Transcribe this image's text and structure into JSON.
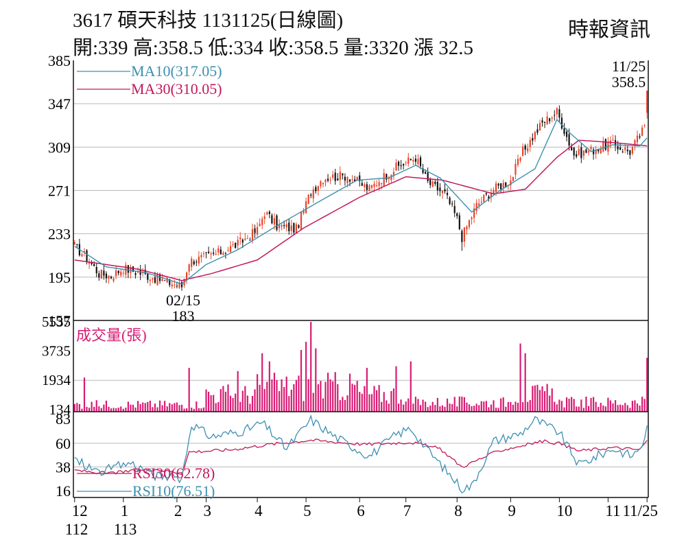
{
  "header": {
    "title": "3617  碩天科技 1131125(日線圖)",
    "ohlc": "開:339 高:358.5 低:334 收:358.5 量:3320 漲 32.5",
    "source": "時報資訊"
  },
  "chart_data": [
    {
      "type": "candlestick",
      "name": "price",
      "ylim": [
        157,
        385
      ],
      "yticks": [
        "385",
        "347",
        "309",
        "271",
        "233",
        "195",
        "157"
      ],
      "grid": true,
      "legend": [
        {
          "label": "MA10(317.05)",
          "color": "#3d8fb0"
        },
        {
          "label": "MA30(310.05)",
          "color": "#c2185b"
        }
      ],
      "annotations": [
        {
          "text": "11/25",
          "date": "2024-11-25"
        },
        {
          "text": "358.5",
          "value": 358.5
        },
        {
          "text": "02/15",
          "date": "2024-02-15"
        },
        {
          "text": "183",
          "value": 183
        }
      ],
      "close_anchors": [
        [
          "2023-12-01",
          222
        ],
        [
          "2023-12-08",
          212
        ],
        [
          "2023-12-15",
          198
        ],
        [
          "2023-12-22",
          196
        ],
        [
          "2024-01-02",
          203
        ],
        [
          "2024-01-15",
          197
        ],
        [
          "2024-01-29",
          190
        ],
        [
          "2024-02-15",
          187
        ],
        [
          "2024-02-20",
          209
        ],
        [
          "2024-02-29",
          212
        ],
        [
          "2024-03-08",
          216
        ],
        [
          "2024-03-20",
          224
        ],
        [
          "2024-04-01",
          236
        ],
        [
          "2024-04-08",
          252
        ],
        [
          "2024-04-15",
          240
        ],
        [
          "2024-04-25",
          237
        ],
        [
          "2024-05-06",
          270
        ],
        [
          "2024-05-13",
          282
        ],
        [
          "2024-05-27",
          284
        ],
        [
          "2024-06-07",
          272
        ],
        [
          "2024-06-14",
          280
        ],
        [
          "2024-06-25",
          291
        ],
        [
          "2024-07-05",
          300
        ],
        [
          "2024-07-12",
          278
        ],
        [
          "2024-07-24",
          268
        ],
        [
          "2024-08-01",
          246
        ],
        [
          "2024-08-05",
          230
        ],
        [
          "2024-08-13",
          258
        ],
        [
          "2024-08-22",
          272
        ],
        [
          "2024-09-02",
          280
        ],
        [
          "2024-09-09",
          305
        ],
        [
          "2024-09-20",
          330
        ],
        [
          "2024-09-30",
          340
        ],
        [
          "2024-10-04",
          324
        ],
        [
          "2024-10-11",
          302
        ],
        [
          "2024-10-22",
          306
        ],
        [
          "2024-11-04",
          312
        ],
        [
          "2024-11-14",
          305
        ],
        [
          "2024-11-22",
          326
        ],
        [
          "2024-11-25",
          358.5
        ]
      ],
      "ma10_anchors": [
        [
          "2023-12-01",
          222
        ],
        [
          "2023-12-20",
          204
        ],
        [
          "2024-01-15",
          199
        ],
        [
          "2024-02-15",
          189
        ],
        [
          "2024-03-01",
          206
        ],
        [
          "2024-03-20",
          219
        ],
        [
          "2024-04-15",
          240
        ],
        [
          "2024-05-10",
          262
        ],
        [
          "2024-05-31",
          280
        ],
        [
          "2024-06-20",
          282
        ],
        [
          "2024-07-05",
          293
        ],
        [
          "2024-07-20",
          282
        ],
        [
          "2024-08-09",
          252
        ],
        [
          "2024-08-26",
          270
        ],
        [
          "2024-09-16",
          290
        ],
        [
          "2024-09-30",
          333
        ],
        [
          "2024-10-08",
          322
        ],
        [
          "2024-10-22",
          305
        ],
        [
          "2024-11-05",
          311
        ],
        [
          "2024-11-20",
          310
        ],
        [
          "2024-11-25",
          317.05
        ]
      ],
      "ma30_anchors": [
        [
          "2023-12-01",
          210
        ],
        [
          "2024-01-10",
          202
        ],
        [
          "2024-02-15",
          192
        ],
        [
          "2024-03-05",
          198
        ],
        [
          "2024-04-01",
          210
        ],
        [
          "2024-05-01",
          238
        ],
        [
          "2024-06-03",
          265
        ],
        [
          "2024-07-01",
          283
        ],
        [
          "2024-07-22",
          280
        ],
        [
          "2024-08-22",
          268
        ],
        [
          "2024-09-10",
          272
        ],
        [
          "2024-09-30",
          300
        ],
        [
          "2024-10-15",
          315
        ],
        [
          "2024-11-05",
          313
        ],
        [
          "2024-11-25",
          310.05
        ]
      ]
    },
    {
      "type": "bar",
      "name": "volume",
      "ylim": [
        0,
        5535
      ],
      "yticks": [
        "5535",
        "3735",
        "1934",
        "134"
      ],
      "title": "成交量(張)",
      "color": "#d81b73",
      "spikes": [
        [
          "2023-12-07",
          2100
        ],
        [
          "2024-02-20",
          2700
        ],
        [
          "2024-03-20",
          2500
        ],
        [
          "2024-04-04",
          3600
        ],
        [
          "2024-04-10",
          3100
        ],
        [
          "2024-04-29",
          3800
        ],
        [
          "2024-05-02",
          4300
        ],
        [
          "2024-05-06",
          5535
        ],
        [
          "2024-05-08",
          3900
        ],
        [
          "2024-06-06",
          2700
        ],
        [
          "2024-06-25",
          2800
        ],
        [
          "2024-07-03",
          3100
        ],
        [
          "2024-09-06",
          4200
        ],
        [
          "2024-09-10",
          3600
        ],
        [
          "2024-11-25",
          3320
        ]
      ]
    },
    {
      "type": "line",
      "name": "rsi",
      "ylim": [
        16,
        83
      ],
      "yticks": [
        "83",
        "60",
        "38",
        "16"
      ],
      "series": [
        {
          "name": "RSI30(62.78)",
          "color": "#c2185b",
          "last": 62.78,
          "anchors": [
            [
              "2023-12-01",
              35
            ],
            [
              "2023-12-20",
              32
            ],
            [
              "2024-01-20",
              36
            ],
            [
              "2024-02-15",
              32
            ],
            [
              "2024-02-20",
              52
            ],
            [
              "2024-03-15",
              54
            ],
            [
              "2024-04-10",
              59
            ],
            [
              "2024-05-06",
              63
            ],
            [
              "2024-06-05",
              59
            ],
            [
              "2024-07-03",
              61
            ],
            [
              "2024-07-20",
              55
            ],
            [
              "2024-08-05",
              38
            ],
            [
              "2024-08-26",
              53
            ],
            [
              "2024-09-20",
              62
            ],
            [
              "2024-10-01",
              60
            ],
            [
              "2024-10-15",
              53
            ],
            [
              "2024-11-05",
              56
            ],
            [
              "2024-11-20",
              54
            ],
            [
              "2024-11-25",
              62.78
            ]
          ]
        },
        {
          "name": "RSI10(76.51)",
          "color": "#3d8fb0",
          "last": 76.51,
          "anchors": [
            [
              "2023-12-01",
              45
            ],
            [
              "2023-12-15",
              33
            ],
            [
              "2024-01-05",
              42
            ],
            [
              "2024-01-20",
              30
            ],
            [
              "2024-02-15",
              28
            ],
            [
              "2024-02-21",
              78
            ],
            [
              "2024-03-05",
              66
            ],
            [
              "2024-03-25",
              72
            ],
            [
              "2024-04-05",
              79
            ],
            [
              "2024-04-20",
              55
            ],
            [
              "2024-05-06",
              82
            ],
            [
              "2024-05-20",
              66
            ],
            [
              "2024-06-07",
              48
            ],
            [
              "2024-06-25",
              68
            ],
            [
              "2024-07-03",
              74
            ],
            [
              "2024-07-15",
              51
            ],
            [
              "2024-08-05",
              18
            ],
            [
              "2024-08-09",
              20
            ],
            [
              "2024-08-22",
              62
            ],
            [
              "2024-09-06",
              69
            ],
            [
              "2024-09-16",
              82
            ],
            [
              "2024-10-01",
              70
            ],
            [
              "2024-10-15",
              40
            ],
            [
              "2024-11-05",
              55
            ],
            [
              "2024-11-15",
              48
            ],
            [
              "2024-11-22",
              62
            ],
            [
              "2024-11-25",
              76.51
            ]
          ]
        }
      ]
    }
  ],
  "x_axis": {
    "labels": [
      {
        "month": "12",
        "year": "112",
        "date": "2023-12-01"
      },
      {
        "month": "1",
        "year": "113",
        "date": "2024-01-02"
      },
      {
        "month": "2",
        "year": "",
        "date": "2024-02-01"
      },
      {
        "month": "3",
        "year": "",
        "date": "2024-03-01"
      },
      {
        "month": "4",
        "year": "",
        "date": "2024-04-01"
      },
      {
        "month": "5",
        "year": "",
        "date": "2024-05-02"
      },
      {
        "month": "6",
        "year": "",
        "date": "2024-06-03"
      },
      {
        "month": "7",
        "year": "",
        "date": "2024-07-01"
      },
      {
        "month": "8",
        "year": "",
        "date": "2024-08-01"
      },
      {
        "month": "9",
        "year": "",
        "date": "2024-09-02"
      },
      {
        "month": "10",
        "year": "",
        "date": "2024-10-01"
      },
      {
        "month": "11",
        "year": "",
        "date": "2024-11-01"
      },
      {
        "month": "11/25",
        "year": "",
        "date": "2024-11-25"
      }
    ]
  },
  "colors": {
    "up": "#e8442a",
    "down": "#111111",
    "grid": "#b9b9b9",
    "axis": "#111111"
  }
}
